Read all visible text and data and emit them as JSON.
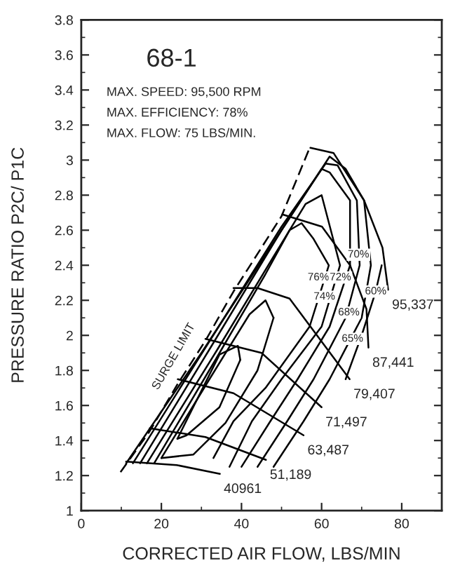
{
  "chart_data": {
    "type": "line",
    "title": "68-1",
    "xlabel": "CORRECTED AIR FLOW, LBS/MIN",
    "ylabel": "PRESSURE RATIO P2C/ P1C",
    "xlim": [
      0,
      90
    ],
    "xticks": [
      0,
      20,
      40,
      60,
      80
    ],
    "ylim": [
      1,
      3.8
    ],
    "yticks": [
      {
        "value": 1,
        "label": "1"
      },
      1.2,
      1.4,
      1.6,
      1.8,
      {
        "value": 2,
        "label": "2"
      },
      2.2,
      2.4,
      2.6,
      2.8,
      {
        "value": 3,
        "label": "3"
      },
      3.2,
      3.4,
      3.6,
      3.8
    ],
    "grid": false,
    "legend": false,
    "marker": "none",
    "line_style": "solid",
    "series": [
      {
        "name": "40961",
        "color": "#000000",
        "x": [
          11.2,
          23.8,
          34.6
        ],
        "values": [
          1.28,
          1.26,
          1.21
        ]
      },
      {
        "name": "51,189",
        "color": "#000000",
        "x": [
          17.1,
          31,
          46.1
        ],
        "values": [
          1.47,
          1.42,
          1.29
        ]
      },
      {
        "name": "63,487",
        "color": "#000000",
        "x": [
          24.1,
          38,
          55.5
        ],
        "values": [
          1.75,
          1.67,
          1.43
        ]
      },
      {
        "name": "71,497",
        "color": "#000000",
        "x": [
          31,
          45,
          60
        ],
        "values": [
          1.98,
          1.9,
          1.59
        ]
      },
      {
        "name": "79,407",
        "color": "#000000",
        "x": [
          38,
          44,
          52,
          67
        ],
        "values": [
          2.27,
          2.27,
          2.21,
          1.75
        ]
      },
      {
        "name": "87,441",
        "color": "#000000",
        "x": [
          50.2,
          60.1,
          67.1,
          71.2,
          71.7
        ],
        "values": [
          2.69,
          2.62,
          2.4,
          2.15,
          1.93
        ]
      },
      {
        "name": "95,337",
        "color": "#000000",
        "x": [
          57.2,
          63,
          70.6,
          75.2,
          76.6
        ],
        "values": [
          3.07,
          3.04,
          2.77,
          2.5,
          2.26
        ]
      },
      {
        "color": "#000000",
        "line_style": "dashed",
        "x": [
          9.8,
          17,
          24,
          31,
          38,
          50,
          57.2
        ],
        "values": [
          1.22,
          1.45,
          1.72,
          1.97,
          2.25,
          2.68,
          3.08
        ]
      },
      {
        "color": "#000000",
        "x": [
          66,
          70,
          73.5,
          75
        ],
        "values": [
          1.75,
          2.0,
          2.25,
          2.4
        ]
      },
      {
        "color": "#000000",
        "x": [
          11.2,
          30,
          50,
          62,
          66,
          70.6,
          72.3,
          70,
          62,
          55.5,
          48
        ],
        "values": [
          1.27,
          1.9,
          2.6,
          3.02,
          2.95,
          2.77,
          2.4,
          2.1,
          1.75,
          1.51,
          1.25
        ]
      },
      {
        "color": "#000000",
        "x": [
          12.9,
          31,
          50,
          61,
          64,
          68.8,
          69.5,
          66,
          58,
          51.4,
          44
        ],
        "values": [
          1.27,
          1.93,
          2.62,
          2.98,
          2.97,
          2.77,
          2.4,
          2.1,
          1.75,
          1.51,
          1.25
        ]
      },
      {
        "color": "#000000",
        "x": [
          14.7,
          32,
          50,
          60,
          62,
          67.1,
          67.1,
          62,
          54,
          47.2,
          40
        ],
        "values": [
          1.27,
          1.92,
          2.6,
          2.95,
          2.93,
          2.77,
          2.4,
          2.05,
          1.75,
          1.51,
          1.25
        ]
      },
      {
        "color": "#000000",
        "x": [
          16.4,
          34,
          48,
          56,
          60,
          64.6,
          60,
          50,
          42.6,
          37
        ],
        "values": [
          1.27,
          1.92,
          2.45,
          2.75,
          2.8,
          2.4,
          2.05,
          1.75,
          1.51,
          1.25
        ]
      },
      {
        "color": "#000000",
        "x": [
          18.2,
          34,
          46,
          52,
          55,
          58,
          61.8,
          57,
          46,
          38,
          33
        ],
        "values": [
          1.27,
          1.88,
          2.35,
          2.6,
          2.64,
          2.55,
          2.4,
          2.05,
          1.7,
          1.51,
          1.3
        ]
      },
      {
        "color": "#000000",
        "x": [
          20,
          32,
          42,
          46,
          48
        ],
        "values": [
          1.3,
          1.75,
          2.12,
          2.2,
          2.1
        ]
      },
      {
        "color": "#000000",
        "x": [
          48,
          44,
          36,
          28,
          20
        ],
        "values": [
          2.1,
          1.8,
          1.5,
          1.32,
          1.3
        ]
      },
      {
        "color": "#000000",
        "x": [
          24,
          34.5,
          39.1,
          39.7
        ],
        "values": [
          1.41,
          1.89,
          1.94,
          1.86
        ]
      },
      {
        "color": "#000000",
        "x": [
          39.7,
          34.5,
          26.3,
          24
        ],
        "values": [
          1.86,
          1.59,
          1.43,
          1.41
        ]
      }
    ],
    "annotations": [
      "MAX. SPEED: 95,500 RPM",
      "MAX. EFFICIENCY: 78%",
      "MAX. FLOW: 75 LBS/MIN.",
      "SURGE LIMIT",
      {
        "text": "76%",
        "x": 59.2,
        "y": 2.33
      },
      {
        "text": "72%",
        "x": 64.7,
        "y": 2.33
      },
      {
        "text": "70%",
        "x": 69.2,
        "y": 2.46
      },
      {
        "text": "74%",
        "x": 60.7,
        "y": 2.22
      },
      {
        "text": "68%",
        "x": 66.8,
        "y": 2.13
      },
      {
        "text": "60%",
        "x": 73.5,
        "y": 2.25
      },
      {
        "text": "65%",
        "x": 67.7,
        "y": 1.98
      }
    ]
  }
}
